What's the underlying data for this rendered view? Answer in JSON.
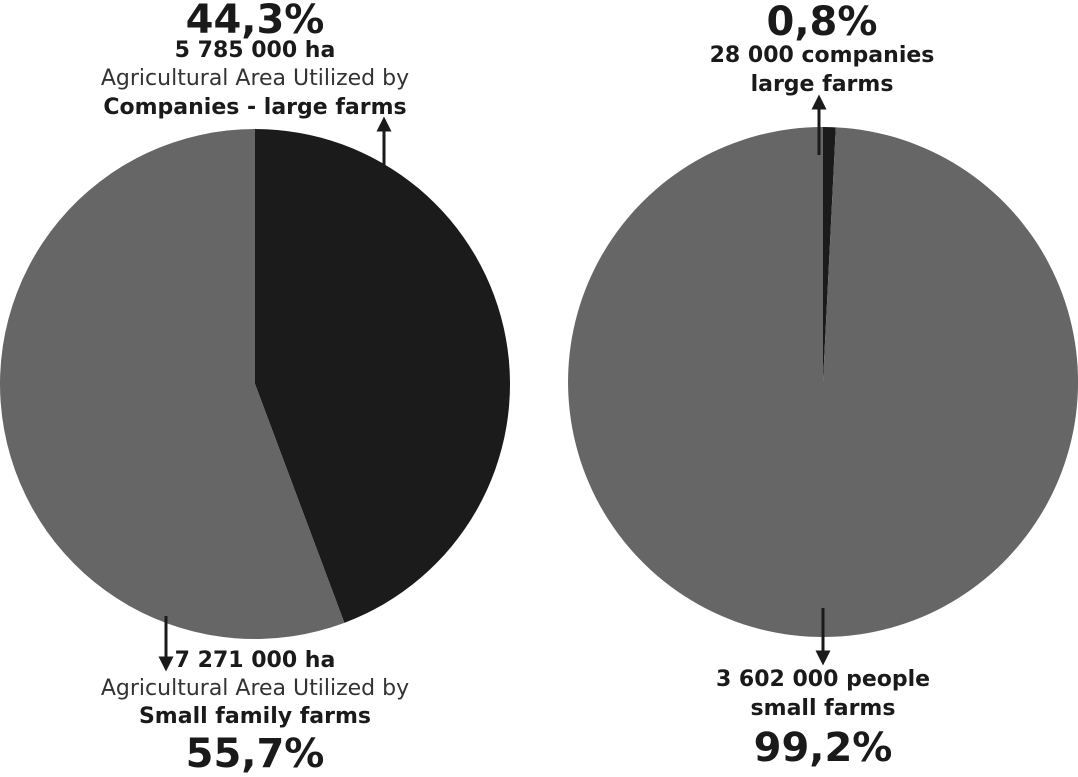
{
  "colors": {
    "companies": "#1b1b1b",
    "family": "#666666",
    "arrow": "#1a1a1a"
  },
  "chart_data": [
    {
      "type": "pie",
      "slices": [
        {
          "label": "Companies - large farms",
          "value": 44.3,
          "color": "#1b1b1b"
        },
        {
          "label": "Small family farms",
          "value": 55.7,
          "color": "#666666"
        }
      ],
      "annotations": {
        "top": {
          "percent": "44,3%",
          "amount": "5 785 000 ha",
          "desc": "Agricultural Area Utilized by",
          "name": "Companies - large farms"
        },
        "bottom": {
          "amount": "7 271 000 ha",
          "desc": "Agricultural Area Utilized by",
          "name": "Small family farms",
          "percent": "55,7%"
        }
      }
    },
    {
      "type": "pie",
      "slices": [
        {
          "label": "large farms",
          "value": 0.8,
          "color": "#1b1b1b"
        },
        {
          "label": "small farms",
          "value": 99.2,
          "color": "#666666"
        }
      ],
      "annotations": {
        "top": {
          "percent": "0,8%",
          "count": "28 000 companies",
          "name": "large farms"
        },
        "bottom": {
          "count": "3 602 000 people",
          "name": "small farms",
          "percent": "99,2%"
        }
      }
    }
  ]
}
